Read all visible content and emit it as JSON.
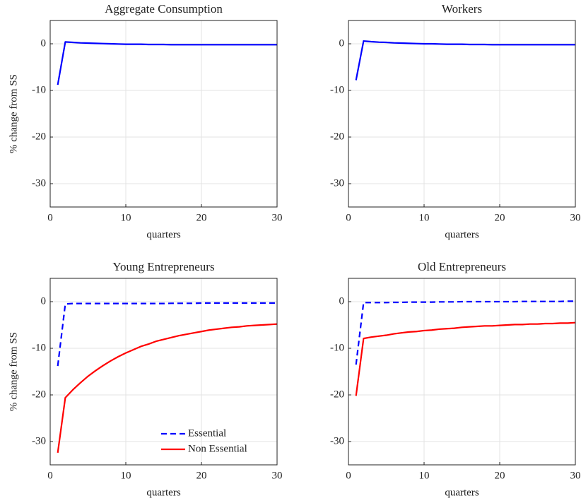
{
  "chart_data": [
    {
      "type": "line",
      "title": "Aggregate Consumption",
      "xlabel": "quarters",
      "ylabel": "% change from SS",
      "x": [
        1,
        2,
        3,
        4,
        5,
        6,
        7,
        8,
        9,
        10,
        11,
        12,
        13,
        14,
        15,
        16,
        17,
        18,
        19,
        20,
        21,
        22,
        23,
        24,
        25,
        26,
        27,
        28,
        29,
        30
      ],
      "series": [
        {
          "color": "#0000ff",
          "style": "solid",
          "values": [
            -8.8,
            0.4,
            0.3,
            0.2,
            0.15,
            0.1,
            0.05,
            0,
            -0.05,
            -0.1,
            -0.1,
            -0.1,
            -0.15,
            -0.15,
            -0.15,
            -0.2,
            -0.2,
            -0.2,
            -0.2,
            -0.2,
            -0.2,
            -0.2,
            -0.2,
            -0.2,
            -0.2,
            -0.2,
            -0.2,
            -0.2,
            -0.2,
            -0.2
          ]
        }
      ],
      "xlim": [
        0,
        30
      ],
      "xticks": [
        0,
        10,
        20,
        30
      ],
      "ylim": [
        -35,
        5
      ],
      "yticks": [
        -30,
        -20,
        -10,
        0
      ],
      "grid": true
    },
    {
      "type": "line",
      "title": "Workers",
      "xlabel": "quarters",
      "x": [
        1,
        2,
        3,
        4,
        5,
        6,
        7,
        8,
        9,
        10,
        11,
        12,
        13,
        14,
        15,
        16,
        17,
        18,
        19,
        20,
        21,
        22,
        23,
        24,
        25,
        26,
        27,
        28,
        29,
        30
      ],
      "series": [
        {
          "color": "#0000ff",
          "style": "solid",
          "values": [
            -7.8,
            0.6,
            0.45,
            0.35,
            0.3,
            0.2,
            0.15,
            0.1,
            0.05,
            0,
            0,
            -0.05,
            -0.1,
            -0.1,
            -0.1,
            -0.15,
            -0.15,
            -0.15,
            -0.2,
            -0.2,
            -0.2,
            -0.2,
            -0.2,
            -0.2,
            -0.2,
            -0.2,
            -0.2,
            -0.2,
            -0.2,
            -0.2
          ]
        }
      ],
      "xlim": [
        0,
        30
      ],
      "xticks": [
        0,
        10,
        20,
        30
      ],
      "ylim": [
        -35,
        5
      ],
      "yticks": [
        -30,
        -20,
        -10,
        0
      ],
      "grid": true
    },
    {
      "type": "line",
      "title": "Young Entrepreneurs",
      "xlabel": "quarters",
      "ylabel": "% change from SS",
      "x": [
        1,
        2,
        3,
        4,
        5,
        6,
        7,
        8,
        9,
        10,
        11,
        12,
        13,
        14,
        15,
        16,
        17,
        18,
        19,
        20,
        21,
        22,
        23,
        24,
        25,
        26,
        27,
        28,
        29,
        30
      ],
      "series": [
        {
          "name": "Essential",
          "color": "#0000ff",
          "style": "dashed",
          "values": [
            -13.8,
            -0.5,
            -0.4,
            -0.4,
            -0.4,
            -0.4,
            -0.4,
            -0.4,
            -0.4,
            -0.4,
            -0.4,
            -0.4,
            -0.4,
            -0.4,
            -0.4,
            -0.35,
            -0.35,
            -0.35,
            -0.35,
            -0.3,
            -0.3,
            -0.3,
            -0.3,
            -0.3,
            -0.3,
            -0.3,
            -0.3,
            -0.3,
            -0.3,
            -0.3
          ]
        },
        {
          "name": "Non Essential",
          "color": "#ff0000",
          "style": "solid",
          "values": [
            -32.4,
            -20.6,
            -18.9,
            -17.4,
            -16.0,
            -14.8,
            -13.7,
            -12.7,
            -11.8,
            -11.0,
            -10.3,
            -9.6,
            -9.1,
            -8.5,
            -8.1,
            -7.7,
            -7.3,
            -7.0,
            -6.7,
            -6.4,
            -6.1,
            -5.9,
            -5.7,
            -5.5,
            -5.4,
            -5.2,
            -5.1,
            -5.0,
            -4.9,
            -4.8
          ]
        }
      ],
      "xlim": [
        0,
        30
      ],
      "xticks": [
        0,
        10,
        20,
        30
      ],
      "ylim": [
        -35,
        5
      ],
      "yticks": [
        -30,
        -20,
        -10,
        0
      ],
      "grid": true,
      "legend": "southeast"
    },
    {
      "type": "line",
      "title": "Old Entrepreneurs",
      "xlabel": "quarters",
      "x": [
        1,
        2,
        3,
        4,
        5,
        6,
        7,
        8,
        9,
        10,
        11,
        12,
        13,
        14,
        15,
        16,
        17,
        18,
        19,
        20,
        21,
        22,
        23,
        24,
        25,
        26,
        27,
        28,
        29,
        30
      ],
      "series": [
        {
          "name": "Essential",
          "color": "#0000ff",
          "style": "dashed",
          "values": [
            -13.5,
            -0.2,
            -0.2,
            -0.2,
            -0.2,
            -0.15,
            -0.15,
            -0.1,
            -0.1,
            -0.1,
            -0.1,
            -0.05,
            -0.05,
            -0.05,
            0,
            0,
            0,
            0,
            0,
            0,
            0,
            0,
            0.05,
            0.05,
            0.05,
            0.05,
            0.05,
            0.05,
            0.1,
            0.1
          ]
        },
        {
          "name": "Non Essential",
          "color": "#ff0000",
          "style": "solid",
          "values": [
            -20.2,
            -7.9,
            -7.6,
            -7.4,
            -7.2,
            -6.9,
            -6.7,
            -6.5,
            -6.4,
            -6.2,
            -6.1,
            -5.9,
            -5.8,
            -5.7,
            -5.5,
            -5.4,
            -5.3,
            -5.2,
            -5.2,
            -5.1,
            -5.0,
            -4.9,
            -4.9,
            -4.8,
            -4.8,
            -4.7,
            -4.7,
            -4.6,
            -4.6,
            -4.5
          ]
        }
      ],
      "xlim": [
        0,
        30
      ],
      "xticks": [
        0,
        10,
        20,
        30
      ],
      "ylim": [
        -35,
        5
      ],
      "yticks": [
        -30,
        -20,
        -10,
        0
      ],
      "grid": true
    }
  ]
}
